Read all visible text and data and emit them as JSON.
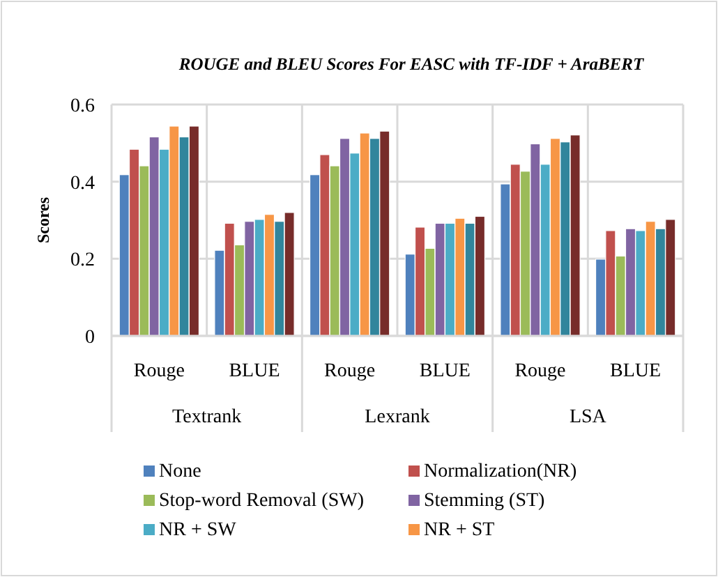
{
  "chart_data": {
    "type": "bar",
    "title": "ROUGE and BLEU Scores For EASC with  TF-IDF + AraBERT",
    "ylabel": "Scores",
    "categories": [
      "Rouge",
      "BLUE",
      "Rouge",
      "BLUE",
      "Rouge",
      "BLUE"
    ],
    "annotations": [
      "Textrank",
      "Lexrank",
      "LSA"
    ],
    "series": [
      {
        "name": "None",
        "color": "#4f81bd",
        "values": [
          0.418,
          0.222,
          0.418,
          0.212,
          0.394,
          0.199
        ]
      },
      {
        "name": "Normalization(NR)",
        "color": "#c0504d",
        "values": [
          0.484,
          0.292,
          0.47,
          0.282,
          0.445,
          0.273
        ]
      },
      {
        "name": "Stop-word Removal (SW)",
        "color": "#9bbb59",
        "values": [
          0.441,
          0.236,
          0.441,
          0.227,
          0.427,
          0.207
        ]
      },
      {
        "name": "Stemming (ST)",
        "color": "#8064a2",
        "values": [
          0.516,
          0.297,
          0.512,
          0.292,
          0.498,
          0.278
        ]
      },
      {
        "name": "NR + SW",
        "color": "#4bacc6",
        "values": [
          0.484,
          0.302,
          0.474,
          0.292,
          0.445,
          0.273
        ]
      },
      {
        "name": "NR + ST",
        "color": "#f79646",
        "values": [
          0.544,
          0.315,
          0.526,
          0.305,
          0.512,
          0.297
        ]
      },
      {
        "color": "#31859c",
        "values": [
          0.516,
          0.297,
          0.512,
          0.292,
          0.503,
          0.278
        ]
      },
      {
        "color": "#772c2a",
        "values": [
          0.544,
          0.32,
          0.531,
          0.31,
          0.521,
          0.302
        ]
      }
    ],
    "ylim": [
      0,
      0.6
    ],
    "yticks": [
      0,
      {
        "value": 0.2,
        "label": "0.2"
      },
      {
        "value": 0.4,
        "label": "0.4"
      },
      {
        "value": 0.6,
        "label": "0.6"
      }
    ],
    "grid": true,
    "legend": "bottom"
  }
}
